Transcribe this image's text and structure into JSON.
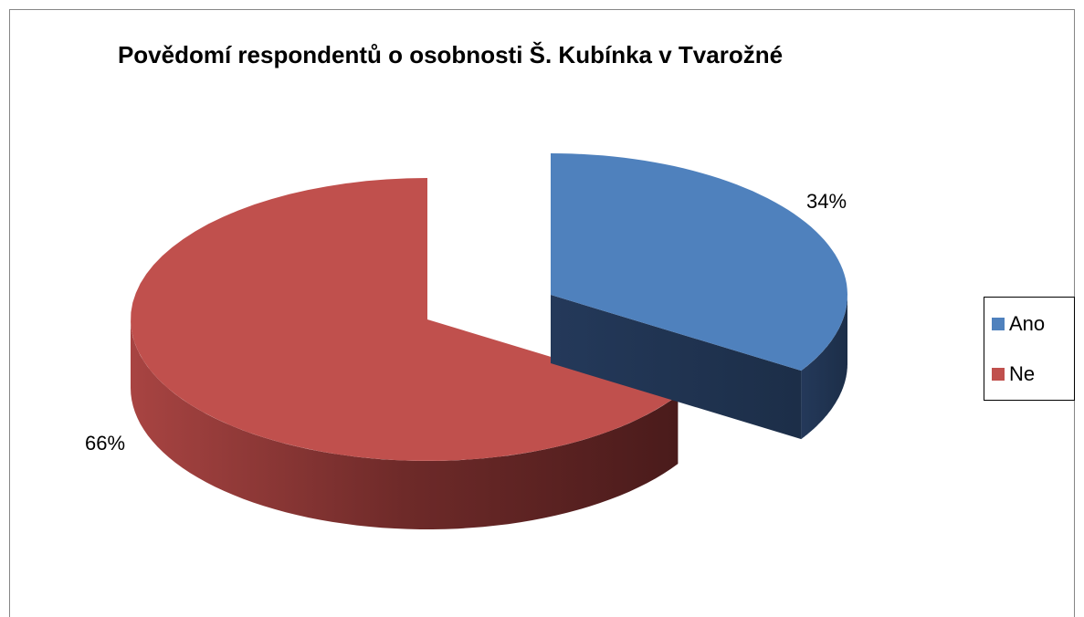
{
  "chart_data": {
    "type": "pie",
    "title": "Povědomí respondentů o osobnosti Š. Kubínka v Tvarožné",
    "categories": [
      "Ano",
      "Ne"
    ],
    "values": [
      34,
      66
    ],
    "value_labels": [
      "34%",
      "66%"
    ],
    "colors": [
      "#4f81bd",
      "#c0504d"
    ],
    "legend": "right"
  }
}
